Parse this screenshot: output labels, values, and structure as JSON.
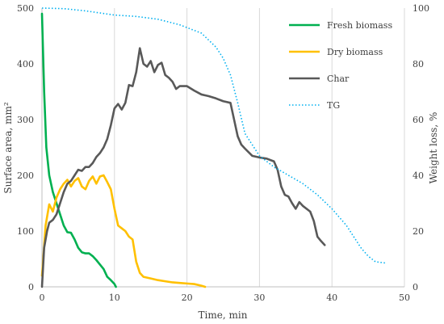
{
  "chart_data": {
    "type": "line",
    "xlabel": "Time, min",
    "ylabel": "Surface area, mm²",
    "y2label": "Weight loss, %",
    "xlim": [
      0,
      50
    ],
    "ylim": [
      0,
      500
    ],
    "y2lim": [
      0,
      100
    ],
    "x_ticks": [
      0,
      10,
      20,
      30,
      40,
      50
    ],
    "y_ticks": [
      0,
      100,
      200,
      300,
      400,
      500
    ],
    "y2_ticks": [
      0,
      20,
      40,
      60,
      80,
      100
    ],
    "grid": "vertical",
    "legend_position": "top-right",
    "series": [
      {
        "name": "Fresh biomass",
        "axis": "left",
        "color": "#00b050",
        "style": "solid",
        "points": [
          [
            0,
            490
          ],
          [
            0.3,
            350
          ],
          [
            0.6,
            250
          ],
          [
            1,
            200
          ],
          [
            1.5,
            170
          ],
          [
            2,
            150
          ],
          [
            2.5,
            130
          ],
          [
            3,
            110
          ],
          [
            3.5,
            98
          ],
          [
            4,
            97
          ],
          [
            4.5,
            85
          ],
          [
            5,
            70
          ],
          [
            5.5,
            62
          ],
          [
            6,
            60
          ],
          [
            6.5,
            60
          ],
          [
            7,
            55
          ],
          [
            7.5,
            48
          ],
          [
            8,
            40
          ],
          [
            8.5,
            32
          ],
          [
            9,
            18
          ],
          [
            9.5,
            12
          ],
          [
            10,
            5
          ],
          [
            10.2,
            0
          ]
        ]
      },
      {
        "name": "Dry biomass",
        "axis": "left",
        "color": "#ffc000",
        "style": "solid",
        "points": [
          [
            0,
            20
          ],
          [
            0.5,
            110
          ],
          [
            1,
            148
          ],
          [
            1.5,
            135
          ],
          [
            2,
            160
          ],
          [
            2.5,
            175
          ],
          [
            3,
            185
          ],
          [
            3.5,
            192
          ],
          [
            4,
            180
          ],
          [
            4.5,
            190
          ],
          [
            5,
            195
          ],
          [
            5.5,
            180
          ],
          [
            6,
            175
          ],
          [
            6.5,
            190
          ],
          [
            7,
            198
          ],
          [
            7.5,
            185
          ],
          [
            8,
            198
          ],
          [
            8.5,
            200
          ],
          [
            9,
            188
          ],
          [
            9.5,
            175
          ],
          [
            10,
            140
          ],
          [
            10.5,
            110
          ],
          [
            11,
            105
          ],
          [
            11.5,
            100
          ],
          [
            12,
            90
          ],
          [
            12.5,
            85
          ],
          [
            13,
            45
          ],
          [
            13.5,
            25
          ],
          [
            14,
            18
          ],
          [
            15,
            15
          ],
          [
            16,
            12
          ],
          [
            17,
            10
          ],
          [
            18,
            8
          ],
          [
            19,
            7
          ],
          [
            20,
            6
          ],
          [
            21,
            5
          ],
          [
            22,
            2
          ],
          [
            22.5,
            0
          ]
        ]
      },
      {
        "name": "Char",
        "axis": "left",
        "color": "#595959",
        "style": "solid",
        "points": [
          [
            0,
            0
          ],
          [
            0.3,
            70
          ],
          [
            0.7,
            100
          ],
          [
            1,
            115
          ],
          [
            1.5,
            120
          ],
          [
            2,
            130
          ],
          [
            2.5,
            150
          ],
          [
            3,
            170
          ],
          [
            3.5,
            185
          ],
          [
            4,
            190
          ],
          [
            4.5,
            200
          ],
          [
            5,
            210
          ],
          [
            5.5,
            208
          ],
          [
            6,
            215
          ],
          [
            6.5,
            215
          ],
          [
            7,
            222
          ],
          [
            7.5,
            233
          ],
          [
            8,
            240
          ],
          [
            8.5,
            250
          ],
          [
            9,
            265
          ],
          [
            9.5,
            290
          ],
          [
            10,
            320
          ],
          [
            10.5,
            328
          ],
          [
            11,
            318
          ],
          [
            11.5,
            330
          ],
          [
            12,
            362
          ],
          [
            12.5,
            360
          ],
          [
            13,
            385
          ],
          [
            13.5,
            428
          ],
          [
            14,
            400
          ],
          [
            14.5,
            395
          ],
          [
            15,
            405
          ],
          [
            15.5,
            385
          ],
          [
            16,
            398
          ],
          [
            16.5,
            402
          ],
          [
            17,
            380
          ],
          [
            17.5,
            375
          ],
          [
            18,
            368
          ],
          [
            18.5,
            355
          ],
          [
            19,
            360
          ],
          [
            20,
            360
          ],
          [
            21,
            352
          ],
          [
            22,
            345
          ],
          [
            23,
            342
          ],
          [
            24,
            338
          ],
          [
            25,
            333
          ],
          [
            26,
            330
          ],
          [
            26.5,
            300
          ],
          [
            27,
            270
          ],
          [
            27.5,
            255
          ],
          [
            28,
            248
          ],
          [
            29,
            235
          ],
          [
            30,
            232
          ],
          [
            31,
            230
          ],
          [
            32,
            225
          ],
          [
            32.5,
            210
          ],
          [
            33,
            180
          ],
          [
            33.5,
            165
          ],
          [
            34,
            162
          ],
          [
            34.5,
            150
          ],
          [
            35,
            140
          ],
          [
            35.5,
            152
          ],
          [
            36,
            145
          ],
          [
            37,
            135
          ],
          [
            37.5,
            118
          ],
          [
            38,
            90
          ],
          [
            38.5,
            82
          ],
          [
            39,
            75
          ]
        ]
      },
      {
        "name": "TG",
        "axis": "right",
        "color": "#00b0f0",
        "style": "dotted",
        "points": [
          [
            0,
            100
          ],
          [
            3,
            99.8
          ],
          [
            6,
            99
          ],
          [
            10,
            97.5
          ],
          [
            13,
            97
          ],
          [
            16,
            96
          ],
          [
            19,
            94
          ],
          [
            22,
            91
          ],
          [
            24,
            86
          ],
          [
            25,
            82
          ],
          [
            26,
            76
          ],
          [
            27,
            66
          ],
          [
            28,
            55
          ],
          [
            30,
            47
          ],
          [
            32,
            43
          ],
          [
            34,
            40
          ],
          [
            36,
            37
          ],
          [
            38,
            33
          ],
          [
            40,
            28
          ],
          [
            42,
            22
          ],
          [
            43,
            18
          ],
          [
            44,
            14
          ],
          [
            45,
            11
          ],
          [
            46,
            9
          ],
          [
            47.5,
            8.5
          ]
        ]
      }
    ]
  }
}
